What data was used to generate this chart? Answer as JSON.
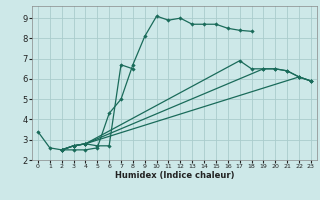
{
  "xlabel": "Humidex (Indice chaleur)",
  "bg_color": "#cde8e8",
  "grid_color": "#aacccc",
  "line_color": "#1a6b5a",
  "xlim": [
    -0.5,
    23.5
  ],
  "ylim": [
    2.0,
    9.6
  ],
  "xticks": [
    0,
    1,
    2,
    3,
    4,
    5,
    6,
    7,
    8,
    9,
    10,
    11,
    12,
    13,
    14,
    15,
    16,
    17,
    18,
    19,
    20,
    21,
    22,
    23
  ],
  "yticks": [
    2,
    3,
    4,
    5,
    6,
    7,
    8,
    9
  ],
  "series1_x": [
    0,
    1,
    2,
    3,
    4,
    5,
    6,
    7,
    8,
    9,
    10,
    11,
    12,
    13,
    14,
    15,
    16,
    17,
    18
  ],
  "series1_y": [
    3.4,
    2.6,
    2.5,
    2.5,
    2.5,
    2.6,
    4.3,
    5.0,
    6.7,
    8.1,
    9.1,
    8.9,
    9.0,
    8.7,
    8.7,
    8.7,
    8.5,
    8.4,
    8.35
  ],
  "series2_x": [
    2,
    3,
    4,
    5,
    6,
    7,
    8
  ],
  "series2_y": [
    2.5,
    2.7,
    2.8,
    2.7,
    2.7,
    6.7,
    6.5
  ],
  "series3_x": [
    2,
    3,
    4,
    19,
    20,
    21,
    22,
    23
  ],
  "series3_y": [
    2.5,
    2.7,
    2.8,
    6.5,
    6.5,
    6.4,
    6.1,
    5.9
  ],
  "series4_x": [
    2,
    3,
    4,
    22,
    23
  ],
  "series4_y": [
    2.5,
    2.7,
    2.8,
    6.1,
    5.9
  ],
  "series5_x": [
    2,
    3,
    4,
    17,
    18,
    19,
    20,
    21,
    22,
    23
  ],
  "series5_y": [
    2.5,
    2.7,
    2.8,
    6.9,
    6.5,
    6.5,
    6.5,
    6.4,
    6.1,
    5.9
  ]
}
